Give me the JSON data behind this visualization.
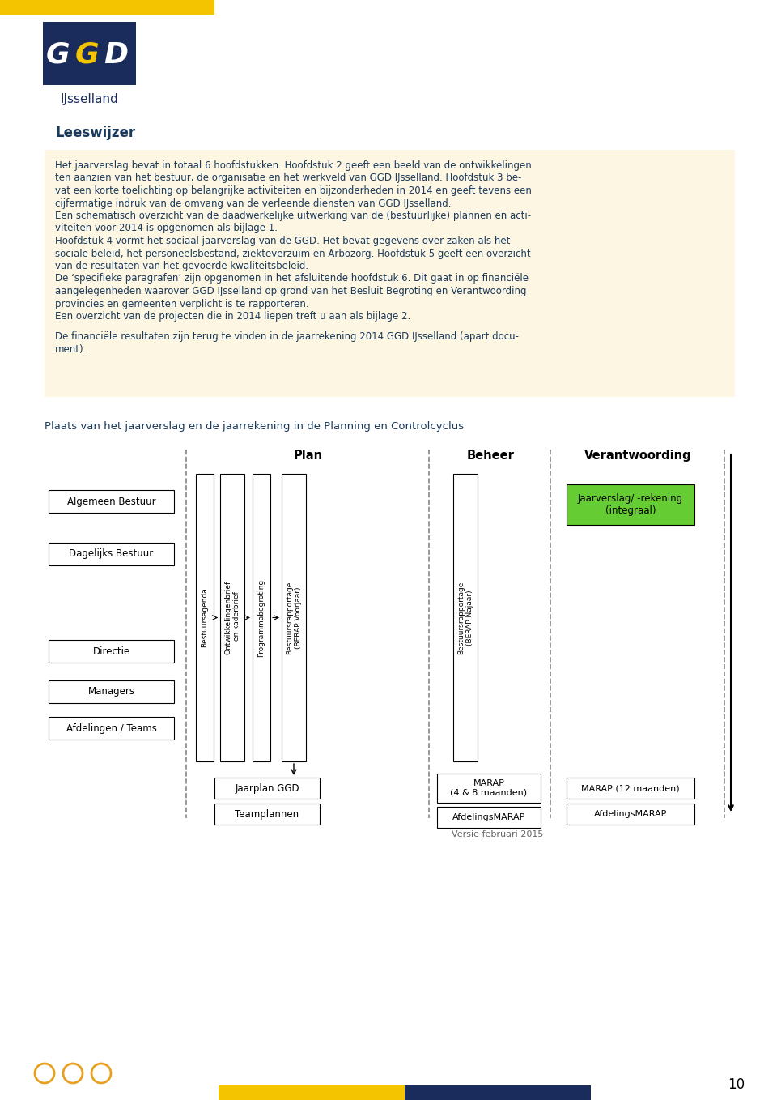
{
  "bg_color": "#ffffff",
  "yellow_bar_color": "#f5c400",
  "dark_blue": "#1a2c5b",
  "text_color": "#1a3a5c",
  "light_bg": "#fdf6e3",
  "green_box": "#66cc33",
  "title_leeswijzer": "Leeswijzer",
  "body_text_lines": [
    "Het jaarverslag bevat in totaal 6 hoofdstukken. Hoofdstuk 2 geeft een beeld van de ontwikkelingen",
    "ten aanzien van het bestuur, de organisatie en het werkveld van GGD IJsselland. Hoofdstuk 3 be-",
    "vat een korte toelichting op belangrijke activiteiten en bijzonderheden in 2014 en geeft tevens een",
    "cijfermatige indruk van de omvang van de verleende diensten van GGD IJsselland.",
    "Een schematisch overzicht van de daadwerkelijke uitwerking van de (bestuurlijke) plannen en acti-",
    "viteiten voor 2014 is opgenomen als bijlage 1.",
    "Hoofdstuk 4 vormt het sociaal jaarverslag van de GGD. Het bevat gegevens over zaken als het",
    "sociale beleid, het personeelsbestand, ziekteverzuim en Arbozorg. Hoofdstuk 5 geeft een overzicht",
    "van de resultaten van het gevoerde kwaliteitsbeleid.",
    "De ‘specifieke paragrafen’ zijn opgenomen in het afsluitende hoofdstuk 6. Dit gaat in op financiële",
    "aangelegenheden waarover GGD IJsselland op grond van het Besluit Begroting en Verantwoording",
    "provincies en gemeenten verplicht is te rapporteren.",
    "Een overzicht van de projecten die in 2014 liepen treft u aan als bijlage 2."
  ],
  "extra_text_lines": [
    "De financiële resultaten zijn terug te vinden in de jaarrekening 2014 GGD IJsselland (apart docu-",
    "ment)."
  ],
  "diagram_title": "Plaats van het jaarverslag en de jaarrekening in de Planning en Controlcyclus",
  "version_text": "Versie februari 2015",
  "page_number": "10",
  "left_boxes": [
    "Algemeen Bestuur",
    "Dagelijks Bestuur",
    "Directie",
    "Managers",
    "Afdelingen / Teams"
  ],
  "plan_label": "Plan",
  "beheer_label": "Beheer",
  "verantwoording_label": "Verantwoording",
  "vertical_labels_plan": [
    "Bestuursagenda",
    "Ontwikkelingenbrief\n en kaderbrief",
    "Programmabegroting",
    "Bestuursrapportage\n(BERAP Voorjaar)"
  ],
  "vertical_label_beheer": "Bestuursrapportage\n(BERAP Najaar)",
  "bottom_boxes_plan": [
    "Jaarplan GGD",
    "Teamplannen"
  ],
  "bottom_boxes_beheer": [
    "MARAP\n(4 & 8 maanden)",
    "AfdelingsMARAP"
  ],
  "bottom_boxes_verant": [
    "MARAP (12 maanden)",
    "AfdelingsMARAP"
  ],
  "jaarverslag_box": "Jaarverslag/ -rekening\n(integraal)"
}
